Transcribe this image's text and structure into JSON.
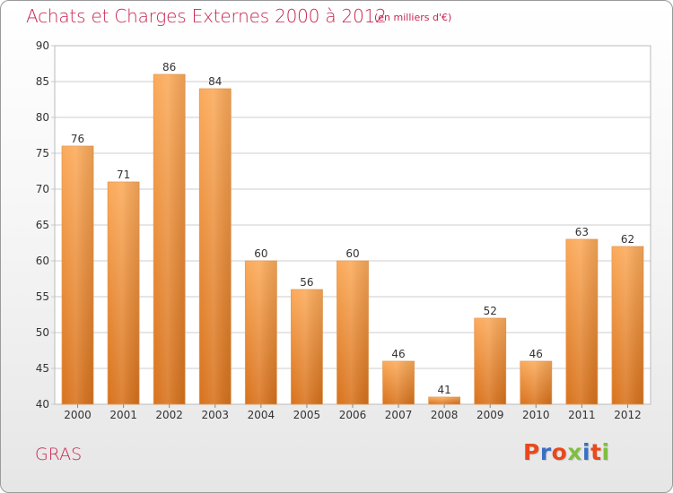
{
  "header": {
    "title": "Achats et Charges Externes 2000 à 2012",
    "subtitle": "(en milliers d'€)"
  },
  "footer": {
    "commune": "GRAS",
    "logo_text": "Proxiti",
    "logo_colors": [
      "#e8491d",
      "#3a6fc4",
      "#e8491d",
      "#7fbf3f",
      "#3a6fc4",
      "#e8491d",
      "#7fbf3f"
    ]
  },
  "colors": {
    "title": "#c8254f",
    "bar_top": "#fbaa5a",
    "bar_bottom": "#d8721c",
    "grid": "#cccccc",
    "axis_text": "#333333"
  },
  "chart_data": {
    "type": "bar",
    "title": "Achats et Charges Externes 2000 à 2012",
    "subtitle": "(en milliers d'€)",
    "categories": [
      "2000",
      "2001",
      "2002",
      "2003",
      "2004",
      "2005",
      "2006",
      "2007",
      "2008",
      "2009",
      "2010",
      "2011",
      "2012"
    ],
    "values": [
      76,
      71,
      86,
      84,
      60,
      56,
      60,
      46,
      41,
      52,
      46,
      63,
      62
    ],
    "data_labels": [
      "76",
      "71",
      "86",
      "84",
      "60",
      "56",
      "60",
      "46",
      "41",
      "52",
      "46",
      "63",
      "62"
    ],
    "ylim": [
      40,
      90
    ],
    "yticks": [
      "40",
      "45",
      "50",
      "55",
      "60",
      "65",
      "70",
      "75",
      "80",
      "85",
      "90"
    ],
    "grid": true,
    "xlabel": "",
    "ylabel": ""
  }
}
